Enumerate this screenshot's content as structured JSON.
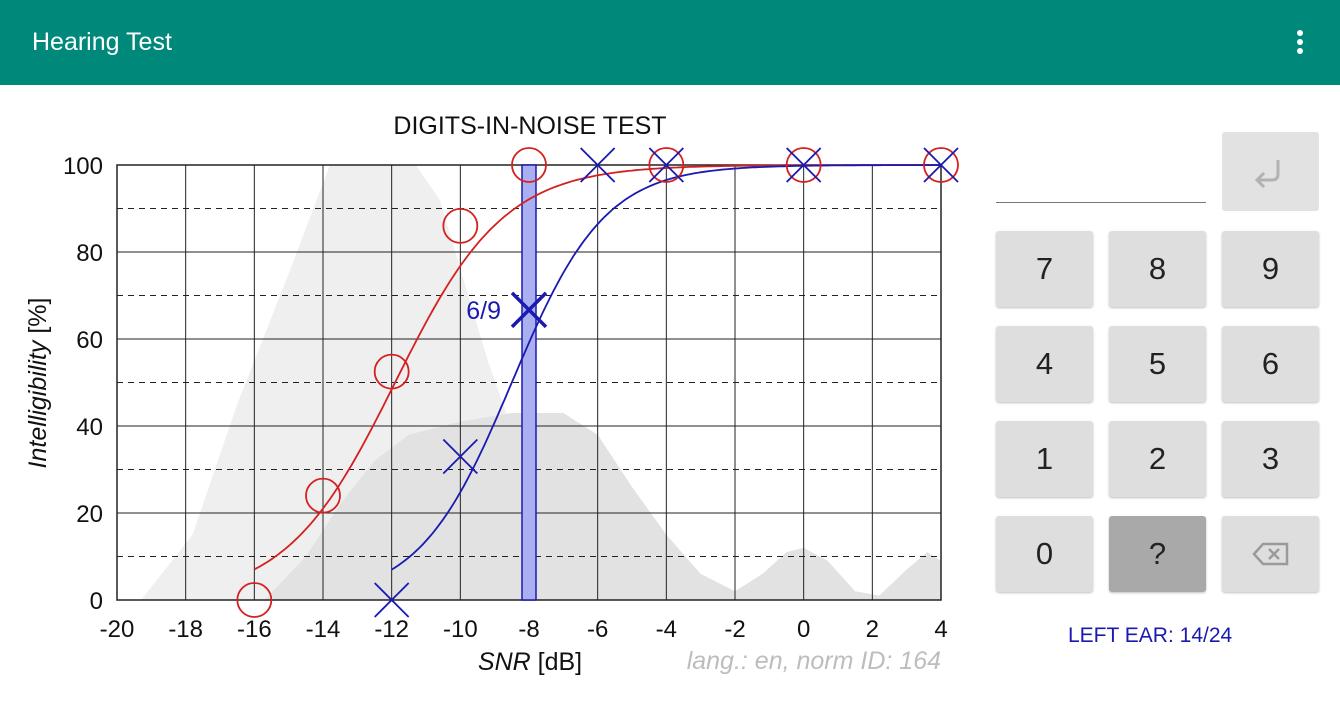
{
  "app": {
    "title": "Hearing Test",
    "menu_icon": "more-vert-icon"
  },
  "chart_data": {
    "type": "scatter",
    "title": "DIGITS-IN-NOISE TEST",
    "xlabel": "SNR",
    "xlabel_unit": "[dB]",
    "ylabel": "Intelligibility",
    "ylabel_unit": "[%]",
    "xlim": [
      -20,
      4
    ],
    "ylim": [
      0,
      100
    ],
    "x_ticks": [
      -20,
      -18,
      -16,
      -14,
      -12,
      -10,
      -8,
      -6,
      -4,
      -2,
      0,
      2,
      4
    ],
    "y_ticks": [
      0,
      20,
      40,
      60,
      80,
      100
    ],
    "note": "lang.: en, norm ID: 164",
    "current_snr": -8,
    "current_label": "6/9",
    "current_value": 66.7,
    "series": [
      {
        "marker": "circle",
        "color": "#d42020",
        "points": [
          [
            -16,
            0
          ],
          [
            -14,
            24
          ],
          [
            -12,
            52.5
          ],
          [
            -10,
            86
          ],
          [
            -8,
            100
          ],
          [
            -4,
            100
          ],
          [
            0,
            100
          ],
          [
            4,
            100
          ]
        ],
        "fit": {
          "midpoint": -11.9,
          "slope": 0.63,
          "x_range": [
            -16,
            4
          ]
        }
      },
      {
        "marker": "cross",
        "color": "#1a1ab0",
        "points": [
          [
            -12,
            0
          ],
          [
            -10,
            33
          ],
          [
            -6,
            100
          ],
          [
            -4,
            100
          ],
          [
            0,
            100
          ],
          [
            4,
            100
          ]
        ],
        "fit": {
          "midpoint": -8.5,
          "slope": 0.74,
          "x_range": [
            -12,
            4
          ]
        }
      }
    ]
  },
  "keypad": {
    "enter_icon": "keyboard-return-icon",
    "backspace_icon": "backspace-icon",
    "rows": [
      [
        "7",
        "8",
        "9"
      ],
      [
        "4",
        "5",
        "6"
      ],
      [
        "1",
        "2",
        "3"
      ],
      [
        "0",
        "?"
      ]
    ]
  },
  "status": {
    "ear": "LEFT EAR: 14/24"
  }
}
